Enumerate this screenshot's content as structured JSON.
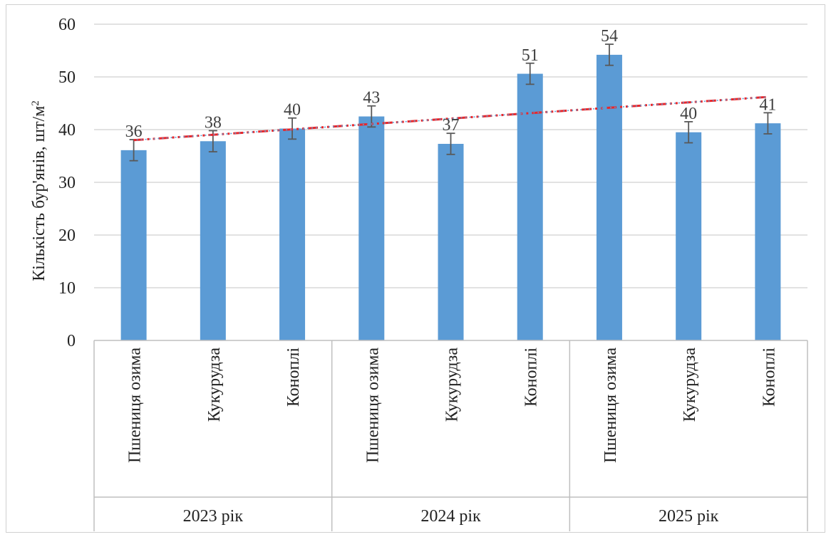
{
  "chart_data": {
    "type": "bar",
    "ylabel": "Кількість бур'янів, шт/м",
    "ylabel_sup": "2",
    "ylim": [
      0,
      60
    ],
    "yticks": [
      0,
      10,
      20,
      30,
      40,
      50,
      60
    ],
    "grid": true,
    "groups": [
      {
        "label": "2023 рік",
        "categories": [
          "Пшениця озима",
          "Кукурудза",
          "Коноплі"
        ]
      },
      {
        "label": "2024 рік",
        "categories": [
          "Пшениця озима",
          "Кукурудза",
          "Коноплі"
        ]
      },
      {
        "label": "2025 рік",
        "categories": [
          "Пшениця озима",
          "Кукурудза",
          "Коноплі"
        ]
      }
    ],
    "values": [
      36.1,
      37.8,
      40.2,
      42.5,
      37.3,
      50.6,
      54.2,
      39.5,
      41.2
    ],
    "data_labels": [
      "36",
      "38",
      "40",
      "43",
      "37",
      "51",
      "54",
      "40",
      "41"
    ],
    "error": [
      2.0,
      2.0,
      2.0,
      2.0,
      2.0,
      2.0,
      2.0,
      2.0,
      2.0
    ],
    "trendline": {
      "type": "linear",
      "start": 38.0,
      "end": 46.2
    },
    "colors": {
      "bar": "#5b9bd5",
      "trend": "#e8262a",
      "trend_dots": "#5b9bd5",
      "grid": "#d9d9d9",
      "error": "#595959"
    }
  }
}
